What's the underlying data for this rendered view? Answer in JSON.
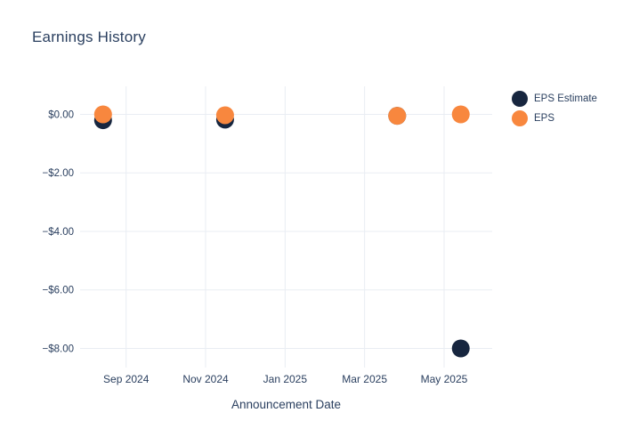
{
  "header": {
    "title": "Earnings History"
  },
  "colors": {
    "navy": "#17263f",
    "orange": "#f8873e",
    "text": "#2a3f5f",
    "grid": "#e9edf3",
    "background": "#ffffff"
  },
  "chart_data": {
    "type": "scatter",
    "title": "Earnings History",
    "xlabel": "Announcement Date",
    "ylabel": "",
    "legend_position": "right-top",
    "grid": {
      "show": true,
      "color": "#e9edf3"
    },
    "marker_size": 20,
    "x_unit": "months since 2024-07-01",
    "x": {
      "range": [
        0.842,
        11.21
      ],
      "ticks": [
        {
          "v": 2,
          "label": "Sep 2024"
        },
        {
          "v": 4,
          "label": "Nov 2024"
        },
        {
          "v": 6,
          "label": "Jan 2025"
        },
        {
          "v": 8,
          "label": "Mar 2025"
        },
        {
          "v": 10,
          "label": "May 2025"
        }
      ]
    },
    "y": {
      "range": [
        -8.654,
        0.958
      ],
      "ticks": [
        {
          "v": 0,
          "label": "$0.00"
        },
        {
          "v": -2,
          "label": "−$2.00"
        },
        {
          "v": -4,
          "label": "−$4.00"
        },
        {
          "v": -6,
          "label": "−$6.00"
        },
        {
          "v": -8,
          "label": "−$8.00"
        }
      ]
    },
    "series": [
      {
        "name": "EPS Estimate",
        "color": "#17263f",
        "points": [
          {
            "x": 1.42,
            "date": "2024-08-14",
            "y": -0.2
          },
          {
            "x": 4.49,
            "date": "2024-11-15",
            "y": -0.18
          },
          {
            "x": 8.82,
            "date": "2025-03-26",
            "y": -0.05
          },
          {
            "x": 10.42,
            "date": "2025-05-14",
            "y": -8.0
          }
        ]
      },
      {
        "name": "EPS",
        "color": "#f8873e",
        "points": [
          {
            "x": 1.42,
            "date": "2024-08-14",
            "y": 0.0
          },
          {
            "x": 4.49,
            "date": "2024-11-15",
            "y": -0.03
          },
          {
            "x": 8.82,
            "date": "2025-03-26",
            "y": -0.05
          },
          {
            "x": 10.42,
            "date": "2025-05-14",
            "y": 0.0
          }
        ]
      }
    ]
  }
}
